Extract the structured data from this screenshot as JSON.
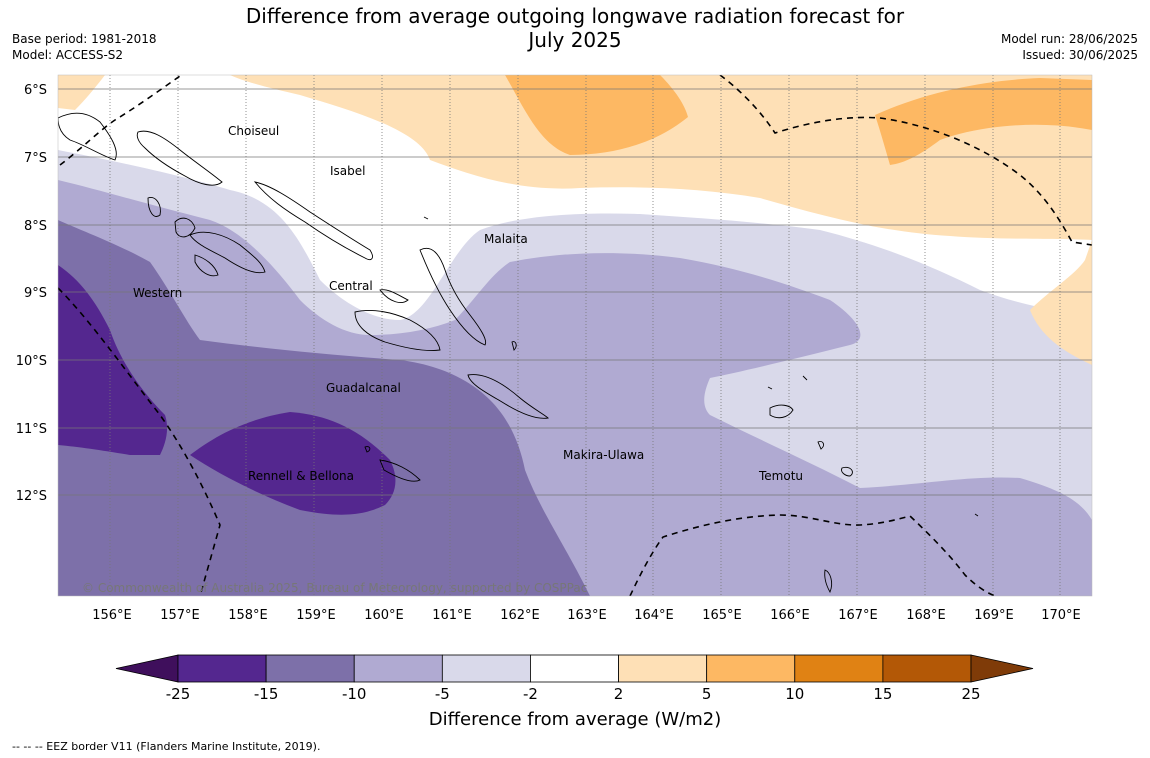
{
  "title_line1": "Difference from average outgoing longwave radiation forecast for",
  "title_line2": "July 2025",
  "meta_left": {
    "base_period": "Base period: 1981-2018",
    "model": "Model: ACCESS-S2"
  },
  "meta_right": {
    "model_run": "Model run: 28/06/2025",
    "issued": "Issued: 30/06/2025"
  },
  "lat_labels": [
    "6°S",
    "7°S",
    "8°S",
    "9°S",
    "10°S",
    "11°S",
    "12°S"
  ],
  "lon_labels": [
    "156°E",
    "157°E",
    "158°E",
    "159°E",
    "160°E",
    "161°E",
    "162°E",
    "163°E",
    "164°E",
    "165°E",
    "166°E",
    "167°E",
    "168°E",
    "169°E",
    "170°E"
  ],
  "places": {
    "choiseul": "Choiseul",
    "isabel": "Isabel",
    "malaita": "Malaita",
    "central": "Central",
    "western": "Western",
    "guadalcanal": "Guadalcanal",
    "makira": "Makira-Ulawa",
    "temotu": "Temotu",
    "rennell": "Rennell & Bellona"
  },
  "copyright": "© Commonwealth of Australia 2025, Bureau of Meteorology, supported by COSPPac",
  "colorbar": {
    "ticks": [
      "-25",
      "-15",
      "-10",
      "-5",
      "-2",
      "2",
      "5",
      "10",
      "15",
      "25"
    ],
    "colors": [
      "#3f0f5c",
      "#54278f",
      "#7d70a9",
      "#b0aad2",
      "#d9d9ea",
      "#ffffff",
      "#fee0b6",
      "#fdb863",
      "#e08214",
      "#b35806",
      "#7f3b08"
    ],
    "title": "Difference from average (W/m2)"
  },
  "footnote": "--  --  -- EEZ border V11 (Flanders Marine Institute, 2019)."
}
